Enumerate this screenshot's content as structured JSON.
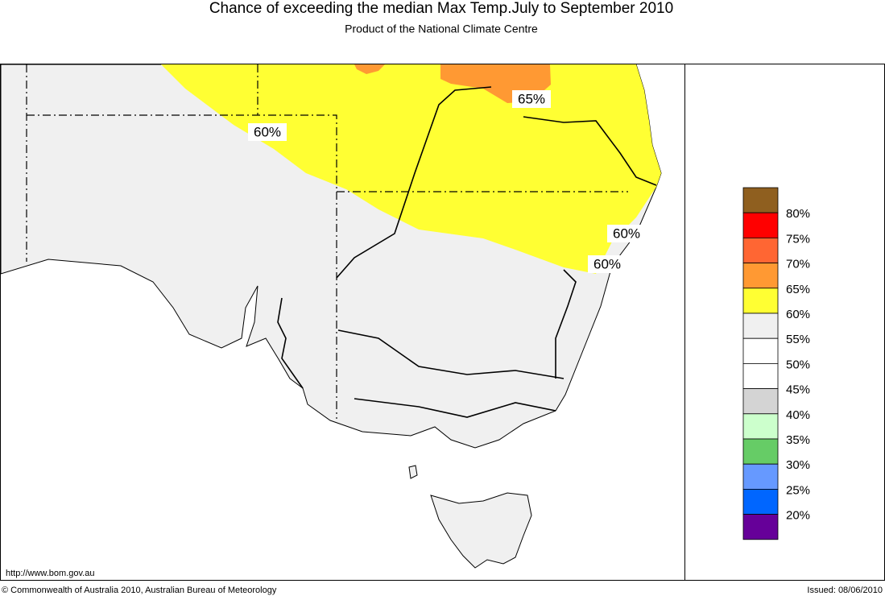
{
  "header": {
    "title": "Chance of exceeding the median Max Temp.July to September 2010",
    "subtitle": "Product of the National Climate Centre"
  },
  "map": {
    "contour_labels": [
      "60%",
      "65%",
      "60%",
      "60%"
    ]
  },
  "legend": {
    "colors": [
      "#8f5f1f",
      "#ff0000",
      "#ff6633",
      "#ff9933",
      "#ffff33",
      "#f0f0f0",
      "#ffffff",
      "#ffffff",
      "#d4d4d4",
      "#ccffcc",
      "#66cc66",
      "#6699ff",
      "#0066ff",
      "#660099"
    ],
    "labels": [
      "80%",
      "75%",
      "70%",
      "65%",
      "60%",
      "55%",
      "50%",
      "45%",
      "40%",
      "35%",
      "30%",
      "25%",
      "20%"
    ]
  },
  "footer": {
    "url": "http://www.bom.gov.au",
    "copyright": "© Commonwealth of Australia 2010, Australian Bureau of Meteorology",
    "issued": "Issued: 08/06/2010"
  }
}
